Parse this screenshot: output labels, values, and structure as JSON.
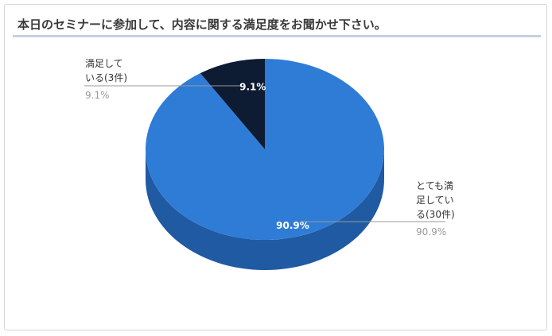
{
  "title": "本日のセミナーに参加して、内容に関する満足度をお聞かせ下さい。",
  "chart_data": {
    "type": "pie",
    "style": "3d",
    "title": "本日のセミナーに参加して、内容に関する満足度をお聞かせ下さい。",
    "slices": [
      {
        "label_lines": [
          "とても満",
          "足してい",
          "る(30件)"
        ],
        "count": 30,
        "percent": 90.9,
        "percent_label": "90.9%",
        "color": "#2f7cd6",
        "side_color": "#1f5aa3"
      },
      {
        "label_lines": [
          "満足して",
          "いる(3件)"
        ],
        "count": 3,
        "percent": 9.1,
        "percent_label": "9.1%",
        "color": "#0d1b33",
        "side_color": "#081225"
      }
    ],
    "legend": "none"
  }
}
